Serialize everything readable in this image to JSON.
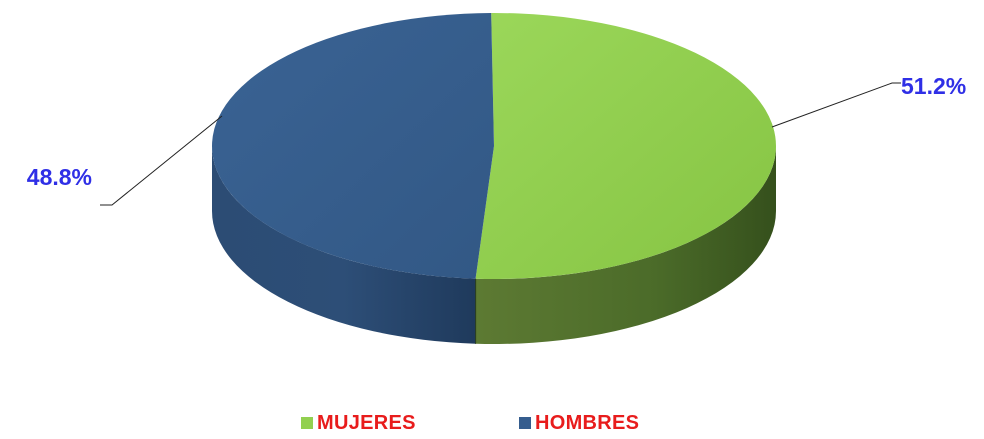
{
  "chart_data": {
    "type": "pie",
    "style": "3d",
    "slices": [
      {
        "name": "MUJERES",
        "value": 51.2,
        "label": "51.2%",
        "color": "#92d050"
      },
      {
        "name": "HOMBRES",
        "value": 48.8,
        "label": "48.8%",
        "color": "#355d8e"
      }
    ],
    "label_color": "#2f2fe6",
    "legend": {
      "placement": "bottom",
      "text_color": "#e81c1c",
      "items": [
        {
          "label": "MUJERES",
          "color": "#92d050"
        },
        {
          "label": "HOMBRES",
          "color": "#355d8e"
        }
      ]
    }
  }
}
